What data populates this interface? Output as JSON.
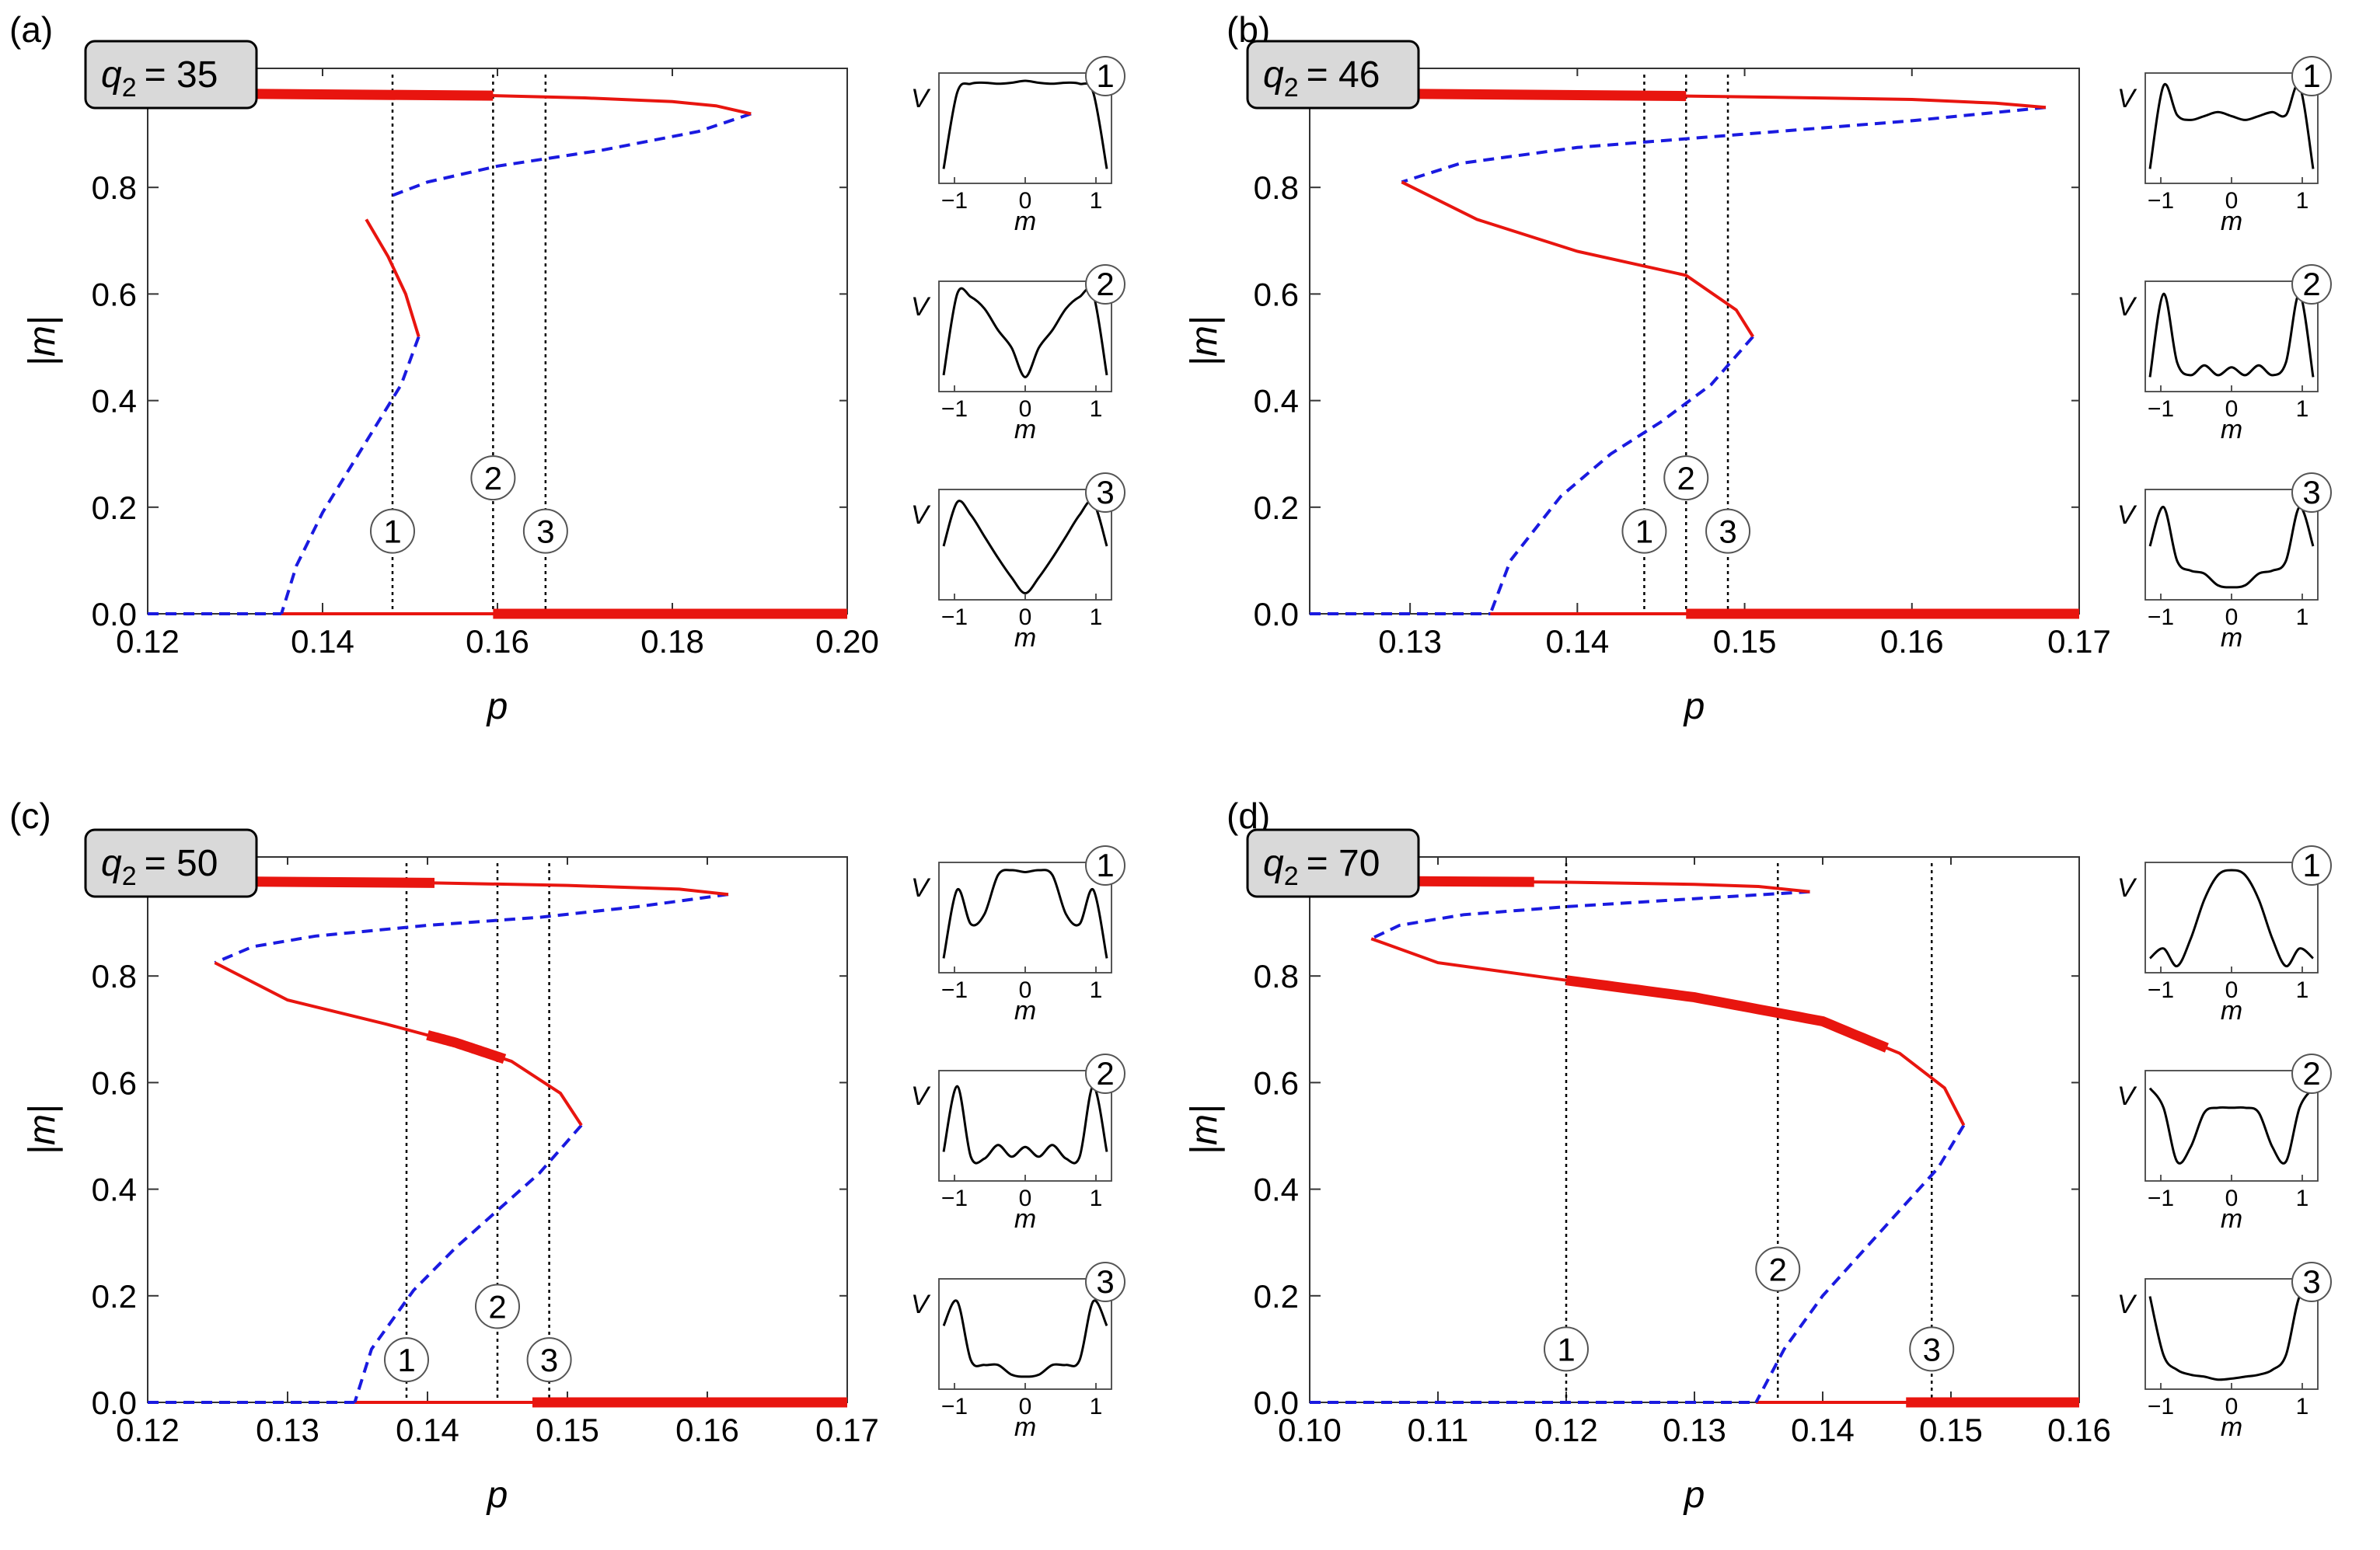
{
  "figure": {
    "y_axis_label": "|m|",
    "x_axis_label": "p",
    "inset_ylabel": "V",
    "inset_xlabel": "m",
    "inset_ticks": [
      "−1",
      "0",
      "1"
    ],
    "colors": {
      "stable": "#e8150f",
      "unstable": "#1a1ae0",
      "black": "#000000",
      "badge": "#d9d9d9"
    }
  },
  "chart_data": [
    {
      "type": "line",
      "panel_label": "(a)",
      "badge": {
        "var": "q",
        "sub": "2",
        "value": "= 35"
      },
      "xlim": [
        0.12,
        0.2
      ],
      "ylim": [
        0,
        1
      ],
      "x_ticks": [
        "0.12",
        "0.14",
        "0.16",
        "0.18",
        "0.20"
      ],
      "y_ticks": [
        "0.0",
        "0.2",
        "0.4",
        "0.6",
        "0.8"
      ],
      "xlabel": "p",
      "ylabel": "|m|",
      "vlines": [
        0.148,
        0.1595,
        0.1655
      ],
      "markers": [
        {
          "label": "1",
          "x": 0.148,
          "y": 0.155
        },
        {
          "label": "2",
          "x": 0.1595,
          "y": 0.255
        },
        {
          "label": "3",
          "x": 0.1655,
          "y": 0.155
        }
      ],
      "upper_branch": {
        "p": [
          0.12,
          0.135,
          0.15,
          0.16,
          0.17,
          0.18,
          0.185,
          0.189
        ],
        "m": [
          0.977,
          0.976,
          0.974,
          0.972,
          0.968,
          0.961,
          0.953,
          0.938
        ],
        "bold_range": [
          0.12,
          0.1595
        ]
      },
      "saddle_branch": {
        "p": [
          0.189,
          0.183,
          0.172,
          0.16,
          0.152,
          0.148
        ],
        "m": [
          0.938,
          0.905,
          0.87,
          0.84,
          0.81,
          0.785
        ]
      },
      "middle_branch": {
        "p": [
          0.145,
          0.1475,
          0.1495,
          0.151
        ],
        "m": [
          0.74,
          0.67,
          0.6,
          0.52
        ],
        "bold_range": null
      },
      "lower_unstable": {
        "p": [
          0.151,
          0.149,
          0.146,
          0.143,
          0.14,
          0.137,
          0.1353
        ],
        "m": [
          0.52,
          0.43,
          0.35,
          0.27,
          0.19,
          0.09,
          0.0
        ]
      },
      "zero_unstable_range": [
        0.12,
        0.1353
      ],
      "zero_stable_range": [
        0.1353,
        0.2
      ],
      "zero_bold_range": [
        0.1595,
        0.2
      ],
      "insets": [
        {
          "label": "1",
          "y": [
            0.1,
            0.88,
            0.97,
            0.98,
            0.97,
            0.98,
            1.0,
            0.98,
            0.97,
            0.98,
            0.97,
            0.88,
            0.1
          ]
        },
        {
          "label": "2",
          "y": [
            0.12,
            0.95,
            0.92,
            0.8,
            0.58,
            0.4,
            0.1,
            0.4,
            0.58,
            0.8,
            0.92,
            0.95,
            0.12
          ]
        },
        {
          "label": "3",
          "y": [
            0.5,
            0.95,
            0.82,
            0.6,
            0.38,
            0.18,
            0.02,
            0.18,
            0.38,
            0.6,
            0.82,
            0.95,
            0.5
          ]
        }
      ]
    },
    {
      "type": "line",
      "panel_label": "(b)",
      "badge": {
        "var": "q",
        "sub": "2",
        "value": "= 46"
      },
      "xlim": [
        0.124,
        0.17
      ],
      "ylim": [
        0,
        1
      ],
      "x_ticks": [
        "0.13",
        "0.14",
        "0.15",
        "0.16",
        "0.17"
      ],
      "y_ticks": [
        "0.0",
        "0.2",
        "0.4",
        "0.6",
        "0.8"
      ],
      "xlabel": "p",
      "ylabel": "|m|",
      "vlines": [
        0.144,
        0.1465,
        0.149
      ],
      "markers": [
        {
          "label": "1",
          "x": 0.144,
          "y": 0.155
        },
        {
          "label": "2",
          "x": 0.1465,
          "y": 0.255
        },
        {
          "label": "3",
          "x": 0.149,
          "y": 0.155
        }
      ],
      "upper_branch": {
        "p": [
          0.124,
          0.13,
          0.14,
          0.15,
          0.16,
          0.165,
          0.168
        ],
        "m": [
          0.977,
          0.976,
          0.974,
          0.97,
          0.965,
          0.958,
          0.95
        ],
        "bold_range": [
          0.124,
          0.1465
        ]
      },
      "saddle_branch": {
        "p": [
          0.168,
          0.16,
          0.15,
          0.14,
          0.133,
          0.1295
        ],
        "m": [
          0.95,
          0.925,
          0.9,
          0.875,
          0.845,
          0.81
        ]
      },
      "middle_branch": {
        "p": [
          0.1295,
          0.134,
          0.14,
          0.1465,
          0.1495,
          0.1505
        ],
        "m": [
          0.81,
          0.74,
          0.68,
          0.635,
          0.57,
          0.52
        ],
        "bold_range": null
      },
      "lower_unstable": {
        "p": [
          0.1505,
          0.148,
          0.145,
          0.142,
          0.139,
          0.136,
          0.1348
        ],
        "m": [
          0.52,
          0.43,
          0.36,
          0.3,
          0.22,
          0.1,
          0.0
        ]
      },
      "zero_unstable_range": [
        0.124,
        0.1348
      ],
      "zero_stable_range": [
        0.1348,
        0.17
      ],
      "zero_bold_range": [
        0.1465,
        0.17
      ],
      "insets": [
        {
          "label": "1",
          "y": [
            0.1,
            0.95,
            0.65,
            0.6,
            0.64,
            0.68,
            0.64,
            0.6,
            0.64,
            0.68,
            0.65,
            0.95,
            0.1
          ]
        },
        {
          "label": "2",
          "y": [
            0.1,
            0.95,
            0.25,
            0.12,
            0.22,
            0.12,
            0.2,
            0.12,
            0.22,
            0.12,
            0.25,
            0.95,
            0.1
          ]
        },
        {
          "label": "3",
          "y": [
            0.5,
            0.9,
            0.35,
            0.25,
            0.22,
            0.1,
            0.08,
            0.1,
            0.22,
            0.25,
            0.35,
            0.9,
            0.5
          ]
        }
      ]
    },
    {
      "type": "line",
      "panel_label": "(c)",
      "badge": {
        "var": "q",
        "sub": "2",
        "value": "= 50"
      },
      "xlim": [
        0.12,
        0.17
      ],
      "ylim": [
        0,
        1
      ],
      "x_ticks": [
        "0.12",
        "0.13",
        "0.14",
        "0.15",
        "0.16",
        "0.17"
      ],
      "y_ticks": [
        "0.0",
        "0.2",
        "0.4",
        "0.6",
        "0.8"
      ],
      "xlabel": "p",
      "ylabel": "|m|",
      "vlines": [
        0.1385,
        0.145,
        0.1487
      ],
      "markers": [
        {
          "label": "1",
          "x": 0.1385,
          "y": 0.08
        },
        {
          "label": "2",
          "x": 0.145,
          "y": 0.18
        },
        {
          "label": "3",
          "x": 0.1487,
          "y": 0.08
        }
      ],
      "upper_branch": {
        "p": [
          0.12,
          0.13,
          0.14,
          0.15,
          0.158,
          0.1615
        ],
        "m": [
          0.978,
          0.977,
          0.975,
          0.97,
          0.963,
          0.953
        ],
        "bold_range": [
          0.125,
          0.1405
        ]
      },
      "saddle_branch": {
        "p": [
          0.1615,
          0.155,
          0.148,
          0.14,
          0.132,
          0.1275,
          0.1248
        ],
        "m": [
          0.953,
          0.93,
          0.91,
          0.895,
          0.875,
          0.855,
          0.825
        ]
      },
      "middle_branch": {
        "p": [
          0.1248,
          0.13,
          0.137,
          0.142,
          0.146,
          0.1495,
          0.151
        ],
        "m": [
          0.825,
          0.755,
          0.71,
          0.675,
          0.64,
          0.58,
          0.52
        ],
        "bold_range": [
          0.14,
          0.1455
        ]
      },
      "lower_unstable": {
        "p": [
          0.151,
          0.148,
          0.145,
          0.142,
          0.139,
          0.136,
          0.1348
        ],
        "m": [
          0.52,
          0.43,
          0.36,
          0.29,
          0.21,
          0.1,
          0.0
        ]
      },
      "zero_unstable_range": [
        0.12,
        0.1348
      ],
      "zero_stable_range": [
        0.1348,
        0.17
      ],
      "zero_bold_range": [
        0.1475,
        0.17
      ],
      "insets": [
        {
          "label": "1",
          "y": [
            0.1,
            0.8,
            0.45,
            0.55,
            0.95,
            1.0,
            0.98,
            1.0,
            0.95,
            0.55,
            0.45,
            0.8,
            0.1
          ]
        },
        {
          "label": "2",
          "y": [
            0.25,
            0.92,
            0.2,
            0.18,
            0.32,
            0.2,
            0.3,
            0.2,
            0.32,
            0.18,
            0.2,
            0.92,
            0.25
          ]
        },
        {
          "label": "3",
          "y": [
            0.6,
            0.85,
            0.25,
            0.2,
            0.2,
            0.1,
            0.08,
            0.1,
            0.2,
            0.2,
            0.25,
            0.85,
            0.6
          ]
        }
      ]
    },
    {
      "type": "line",
      "panel_label": "(d)",
      "badge": {
        "var": "q",
        "sub": "2",
        "value": "= 70"
      },
      "xlim": [
        0.1,
        0.16
      ],
      "ylim": [
        0,
        1
      ],
      "x_ticks": [
        "0.10",
        "0.11",
        "0.12",
        "0.13",
        "0.14",
        "0.15",
        "0.16"
      ],
      "y_ticks": [
        "0.0",
        "0.2",
        "0.4",
        "0.6",
        "0.8"
      ],
      "xlabel": "p",
      "ylabel": "|m|",
      "vlines": [
        0.12,
        0.1365,
        0.1485
      ],
      "markers": [
        {
          "label": "1",
          "x": 0.12,
          "y": 0.1
        },
        {
          "label": "2",
          "x": 0.1365,
          "y": 0.25
        },
        {
          "label": "3",
          "x": 0.1485,
          "y": 0.1
        }
      ],
      "upper_branch": {
        "p": [
          0.1,
          0.11,
          0.12,
          0.13,
          0.135,
          0.139
        ],
        "m": [
          0.979,
          0.978,
          0.976,
          0.972,
          0.968,
          0.958
        ],
        "bold_range": [
          0.1,
          0.1175
        ]
      },
      "saddle_branch": {
        "p": [
          0.139,
          0.13,
          0.12,
          0.112,
          0.107,
          0.1048
        ],
        "m": [
          0.958,
          0.945,
          0.93,
          0.915,
          0.895,
          0.87
        ]
      },
      "middle_branch": {
        "p": [
          0.1048,
          0.11,
          0.12,
          0.13,
          0.14,
          0.146,
          0.1495,
          0.151
        ],
        "m": [
          0.87,
          0.825,
          0.792,
          0.76,
          0.715,
          0.655,
          0.59,
          0.52
        ],
        "bold_range": [
          0.12,
          0.145
        ]
      },
      "lower_unstable": {
        "p": [
          0.151,
          0.149,
          0.146,
          0.143,
          0.14,
          0.137,
          0.1348
        ],
        "m": [
          0.52,
          0.44,
          0.36,
          0.28,
          0.2,
          0.1,
          0.0
        ]
      },
      "zero_unstable_range": [
        0.1,
        0.1348
      ],
      "zero_stable_range": [
        0.1348,
        0.16
      ],
      "zero_bold_range": [
        0.1465,
        0.16
      ],
      "insets": [
        {
          "label": "1",
          "y": [
            0.1,
            0.2,
            0.02,
            0.3,
            0.7,
            0.95,
            1.0,
            0.95,
            0.7,
            0.3,
            0.02,
            0.2,
            0.1
          ]
        },
        {
          "label": "2",
          "y": [
            0.9,
            0.7,
            0.15,
            0.3,
            0.65,
            0.7,
            0.7,
            0.7,
            0.65,
            0.3,
            0.15,
            0.7,
            0.9
          ]
        },
        {
          "label": "3",
          "y": [
            0.9,
            0.3,
            0.15,
            0.1,
            0.08,
            0.05,
            0.06,
            0.08,
            0.1,
            0.15,
            0.3,
            0.9,
            0.9
          ]
        }
      ]
    }
  ]
}
